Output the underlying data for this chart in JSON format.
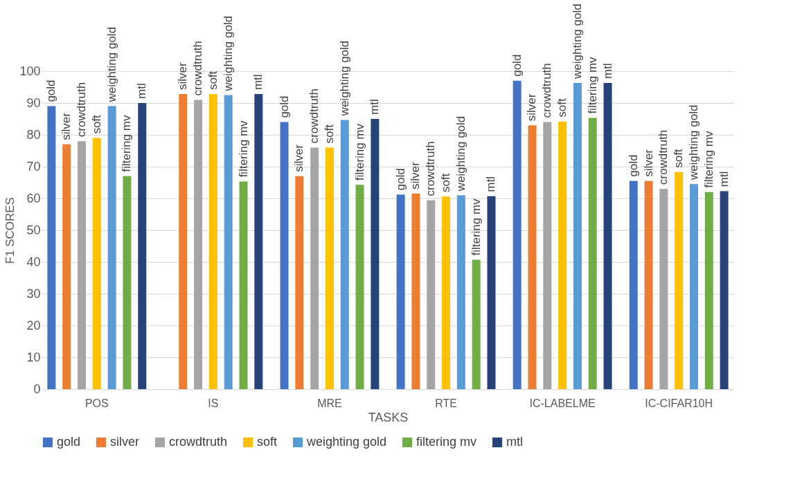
{
  "chart_data": {
    "type": "bar",
    "xlabel": "TASKS",
    "ylabel": "F1 SCORES",
    "categories": [
      "POS",
      "IS",
      "MRE",
      "RTE",
      "IC-LABELME",
      "IC-CIFAR10H"
    ],
    "series": [
      {
        "name": "gold",
        "color": "#4472c4",
        "values": [
          89,
          null,
          84,
          61.2,
          97,
          65.5
        ]
      },
      {
        "name": "silver",
        "color": "#ed7d31",
        "values": [
          77,
          92.8,
          67,
          61.5,
          83,
          65.5
        ]
      },
      {
        "name": "crowdtruth",
        "color": "#a5a5a5",
        "values": [
          78,
          91,
          76,
          59.4,
          84,
          63
        ]
      },
      {
        "name": "soft",
        "color": "#ffc000",
        "values": [
          79,
          92.8,
          76,
          60.6,
          84.2,
          68.3
        ]
      },
      {
        "name": "weighting gold",
        "color": "#5b9bd5",
        "values": [
          89,
          92.5,
          84.7,
          61,
          96.3,
          64.5
        ]
      },
      {
        "name": "filtering mv",
        "color": "#70ad47",
        "values": [
          67,
          65.3,
          64.3,
          40.7,
          85.3,
          62
        ]
      },
      {
        "name": "mtl",
        "color": "#264478",
        "values": [
          90,
          92.8,
          85,
          60.7,
          96.3,
          62.3
        ]
      }
    ],
    "ylim": [
      0,
      100
    ],
    "yticks": [
      0,
      10,
      20,
      30,
      40,
      50,
      60,
      70,
      80,
      90,
      100
    ],
    "grid": "y",
    "legend": "bottom"
  }
}
